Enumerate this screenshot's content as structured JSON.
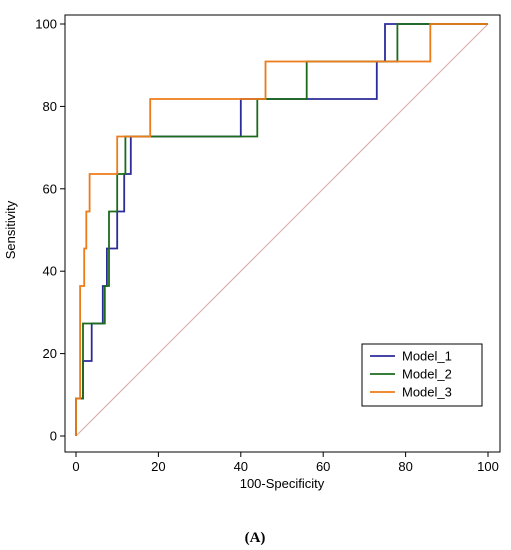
{
  "chart_data": {
    "type": "line",
    "xlabel": "100-Specificity",
    "ylabel": "Sensitivity",
    "xlim": [
      0,
      100
    ],
    "ylim": [
      0,
      100
    ],
    "x_ticks": [
      0,
      20,
      40,
      60,
      80,
      100
    ],
    "y_ticks": [
      0,
      20,
      40,
      60,
      80,
      100
    ],
    "grid": false,
    "legend_position": "bottom-right",
    "panel_label": "(A)",
    "reference_line": {
      "points": [
        [
          0,
          0
        ],
        [
          100,
          100
        ]
      ],
      "color": "#d9a8a8"
    },
    "series": [
      {
        "name": "Model_1",
        "color": "#2b2b9a",
        "points": [
          [
            0,
            0
          ],
          [
            0,
            9.1
          ],
          [
            1.7,
            9.1
          ],
          [
            1.7,
            18.2
          ],
          [
            3.8,
            18.2
          ],
          [
            3.8,
            27.3
          ],
          [
            6.5,
            27.3
          ],
          [
            6.5,
            36.4
          ],
          [
            7.5,
            36.4
          ],
          [
            7.5,
            45.5
          ],
          [
            10,
            45.5
          ],
          [
            10,
            54.5
          ],
          [
            11.7,
            54.5
          ],
          [
            11.7,
            63.6
          ],
          [
            13.3,
            63.6
          ],
          [
            13.3,
            72.7
          ],
          [
            40,
            72.7
          ],
          [
            40,
            81.8
          ],
          [
            73,
            81.8
          ],
          [
            73,
            90.9
          ],
          [
            75,
            90.9
          ],
          [
            75,
            100
          ],
          [
            100,
            100
          ]
        ]
      },
      {
        "name": "Model_2",
        "color": "#1b6b1b",
        "points": [
          [
            0,
            0
          ],
          [
            0,
            9.1
          ],
          [
            1.7,
            9.1
          ],
          [
            1.7,
            27.3
          ],
          [
            7,
            27.3
          ],
          [
            7,
            36.4
          ],
          [
            8,
            36.4
          ],
          [
            8,
            54.5
          ],
          [
            10,
            54.5
          ],
          [
            10,
            63.6
          ],
          [
            12,
            63.6
          ],
          [
            12,
            72.7
          ],
          [
            44,
            72.7
          ],
          [
            44,
            81.8
          ],
          [
            56,
            81.8
          ],
          [
            56,
            90.9
          ],
          [
            78,
            90.9
          ],
          [
            78,
            100
          ],
          [
            100,
            100
          ]
        ]
      },
      {
        "name": "Model_3",
        "color": "#ee7b1a",
        "points": [
          [
            0,
            0
          ],
          [
            0,
            9.1
          ],
          [
            1,
            9.1
          ],
          [
            1,
            36.4
          ],
          [
            2,
            36.4
          ],
          [
            2,
            45.5
          ],
          [
            2.5,
            45.5
          ],
          [
            2.5,
            54.5
          ],
          [
            3.3,
            54.5
          ],
          [
            3.3,
            63.6
          ],
          [
            10,
            63.6
          ],
          [
            10,
            72.7
          ],
          [
            18,
            72.7
          ],
          [
            18,
            81.8
          ],
          [
            46,
            81.8
          ],
          [
            46,
            90.9
          ],
          [
            86,
            90.9
          ],
          [
            86,
            100
          ],
          [
            100,
            100
          ]
        ]
      }
    ]
  }
}
